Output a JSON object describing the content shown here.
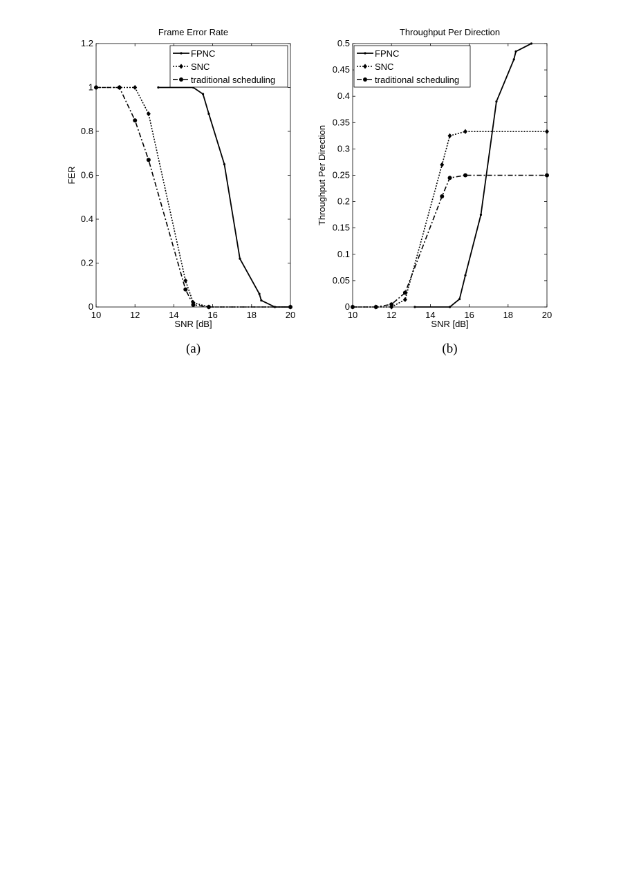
{
  "chart_data": [
    {
      "type": "line",
      "title": "Frame Error Rate",
      "xlabel": "SNR [dB]",
      "ylabel": "FER",
      "caption": "(a)",
      "xlim": [
        10,
        20
      ],
      "ylim": [
        0,
        1.2
      ],
      "xticks": [
        10,
        12,
        14,
        16,
        18,
        20
      ],
      "xtick_labels": [
        "10",
        "12",
        "14",
        "16",
        "18",
        "20"
      ],
      "yticks": [
        0,
        0.2,
        0.4,
        0.6,
        0.8,
        1,
        1.2
      ],
      "ytick_labels": [
        "0",
        "0.2",
        "0.4",
        "0.6",
        "0.8",
        "1",
        "1.2"
      ],
      "grid": false,
      "legend_position": "top-right",
      "series": [
        {
          "name": "FPNC",
          "line_style": "solid",
          "marker": "dot",
          "x": [
            13.2,
            15.0,
            15.5,
            15.8,
            16.6,
            17.4,
            18.4,
            18.5,
            19.2,
            20.0
          ],
          "y": [
            1.0,
            1.0,
            0.97,
            0.88,
            0.65,
            0.22,
            0.06,
            0.03,
            0.0,
            0.0
          ]
        },
        {
          "name": "SNC",
          "line_style": "dotted",
          "marker": "diamond",
          "x": [
            10.0,
            11.2,
            12.0,
            12.7,
            14.6,
            15.0,
            15.8,
            20.0
          ],
          "y": [
            1.0,
            1.0,
            1.0,
            0.88,
            0.12,
            0.02,
            0.0,
            0.0
          ]
        },
        {
          "name": "traditional scheduling",
          "line_style": "dashdot",
          "marker": "circle",
          "x": [
            10.0,
            11.2,
            12.0,
            12.7,
            14.6,
            15.0,
            15.8,
            20.0
          ],
          "y": [
            1.0,
            1.0,
            0.85,
            0.67,
            0.08,
            0.01,
            0.0,
            0.0
          ]
        }
      ]
    },
    {
      "type": "line",
      "title": "Throughput Per Direction",
      "xlabel": "SNR [dB]",
      "ylabel": "Throughput Per Direction",
      "caption": "(b)",
      "xlim": [
        10,
        20
      ],
      "ylim": [
        0,
        0.5
      ],
      "xticks": [
        10,
        12,
        14,
        16,
        18,
        20
      ],
      "xtick_labels": [
        "10",
        "12",
        "14",
        "16",
        "18",
        "20"
      ],
      "yticks": [
        0,
        0.05,
        0.1,
        0.15,
        0.2,
        0.25,
        0.3,
        0.35,
        0.4,
        0.45,
        0.5
      ],
      "ytick_labels": [
        "0",
        "0.05",
        "0.1",
        "0.15",
        "0.2",
        "0.25",
        "0.3",
        "0.35",
        "0.4",
        "0.45",
        "0.5"
      ],
      "grid": false,
      "legend_position": "top-left",
      "series": [
        {
          "name": "FPNC",
          "line_style": "solid",
          "marker": "dot",
          "x": [
            13.2,
            15.0,
            15.5,
            15.8,
            16.6,
            17.4,
            18.3,
            18.4,
            19.2
          ],
          "y": [
            0.0,
            0.0,
            0.015,
            0.06,
            0.175,
            0.39,
            0.47,
            0.485,
            0.5
          ]
        },
        {
          "name": "SNC",
          "line_style": "dotted",
          "marker": "diamond",
          "x": [
            10.0,
            11.2,
            12.0,
            12.7,
            14.6,
            15.0,
            15.8,
            20.0
          ],
          "y": [
            0.0,
            0.0,
            0.0,
            0.014,
            0.27,
            0.325,
            0.333,
            0.333
          ]
        },
        {
          "name": "traditional scheduling",
          "line_style": "dashdot",
          "marker": "circle",
          "x": [
            10.0,
            11.2,
            12.0,
            12.7,
            14.6,
            15.0,
            15.8,
            20.0
          ],
          "y": [
            0.0,
            0.0,
            0.005,
            0.027,
            0.21,
            0.245,
            0.25,
            0.25
          ]
        }
      ]
    }
  ]
}
